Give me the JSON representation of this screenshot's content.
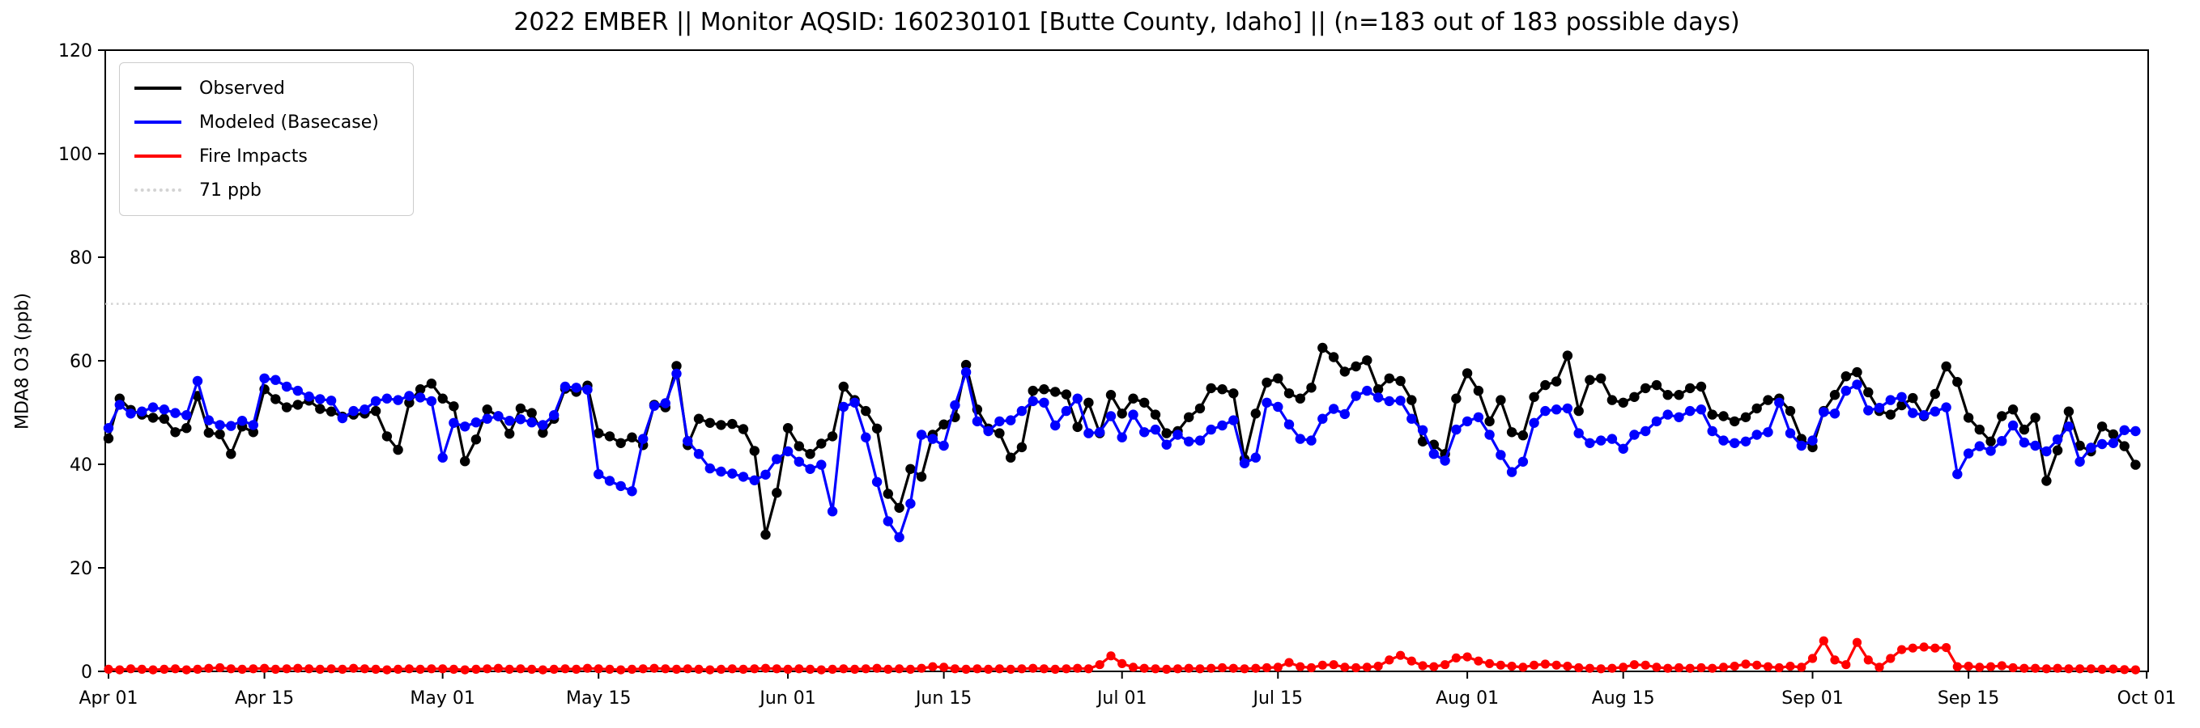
{
  "title": "2022 EMBER || Monitor AQSID: 160230101 [Butte County, Idaho] || (n=183 out of 183 possible days)",
  "legend": {
    "items": [
      {
        "label": "Observed",
        "color": "#000000",
        "style": "solid"
      },
      {
        "label": "Modeled (Basecase)",
        "color": "#0000ff",
        "style": "solid"
      },
      {
        "label": "Fire Impacts",
        "color": "#ff0000",
        "style": "solid"
      },
      {
        "label": "71 ppb",
        "color": "#d3d3d3",
        "style": "dotted"
      }
    ]
  },
  "chart_data": {
    "type": "line",
    "title": "2022 EMBER || Monitor AQSID: 160230101 [Butte County, Idaho] || (n=183 out of 183 possible days)",
    "ylabel": "MDA8 O3 (ppb)",
    "xlabel": "",
    "ylim": [
      0,
      120
    ],
    "grid": false,
    "legend_position": "upper left",
    "n_days": 183,
    "threshold": {
      "label": "71 ppb",
      "value": 71,
      "color": "#d3d3d3"
    },
    "y_axis": {
      "label": "MDA8 O3 (ppb)",
      "ticks": [
        0,
        20,
        40,
        60,
        80,
        100,
        120
      ]
    },
    "x_axis": {
      "ticks": [
        {
          "label": "Apr 01",
          "day": 0
        },
        {
          "label": "Apr 15",
          "day": 14
        },
        {
          "label": "May 01",
          "day": 30
        },
        {
          "label": "May 15",
          "day": 44
        },
        {
          "label": "Jun 01",
          "day": 61
        },
        {
          "label": "Jun 15",
          "day": 75
        },
        {
          "label": "Jul 01",
          "day": 91
        },
        {
          "label": "Jul 15",
          "day": 105
        },
        {
          "label": "Aug 01",
          "day": 122
        },
        {
          "label": "Aug 15",
          "day": 136
        },
        {
          "label": "Sep 01",
          "day": 153
        },
        {
          "label": "Sep 15",
          "day": 167
        },
        {
          "label": "Oct 01",
          "day": 183
        }
      ]
    },
    "series": [
      {
        "name": "Observed",
        "color": "#000000",
        "marker": "circle",
        "values": [
          45.0,
          52.7,
          50.5,
          49.6,
          49.0,
          48.8,
          46.2,
          47.0,
          53.2,
          46.1,
          45.8,
          42.0,
          47.3,
          46.2,
          54.5,
          52.6,
          51.0,
          51.5,
          52.3,
          50.7,
          50.2,
          49.2,
          49.6,
          49.8,
          50.3,
          45.4,
          42.8,
          51.9,
          54.5,
          55.6,
          52.7,
          51.2,
          40.6,
          44.8,
          50.6,
          49.3,
          45.9,
          50.8,
          49.9,
          46.1,
          48.8,
          54.6,
          54.0,
          55.2,
          46.0,
          45.4,
          44.1,
          45.2,
          43.7,
          51.5,
          51.0,
          59.0,
          43.7,
          48.8,
          48.0,
          47.6,
          47.8,
          46.8,
          42.6,
          26.4,
          34.5,
          47.0,
          43.5,
          42.0,
          44.0,
          45.4,
          55.0,
          52.4,
          50.3,
          46.9,
          34.3,
          31.6,
          39.1,
          37.6,
          45.7,
          47.7,
          49.1,
          59.2,
          50.6,
          46.9,
          46.0,
          41.3,
          43.3,
          54.2,
          54.5,
          54.0,
          53.5,
          47.2,
          51.9,
          46.0,
          53.4,
          49.8,
          52.7,
          51.9,
          49.6,
          46.0,
          46.4,
          49.1,
          50.8,
          54.7,
          54.5,
          53.7,
          41.0,
          49.8,
          55.8,
          56.6,
          53.7,
          52.7,
          54.8,
          62.5,
          60.7,
          57.9,
          58.9,
          60.1,
          54.5,
          56.6,
          56.1,
          52.4,
          44.4,
          43.8,
          42.0,
          52.7,
          57.6,
          54.2,
          48.3,
          52.4,
          46.2,
          45.6,
          53.0,
          55.3,
          56.0,
          61.0,
          50.3,
          56.3,
          56.6,
          52.4,
          51.9,
          53.0,
          54.7,
          55.3,
          53.4,
          53.4,
          54.7,
          55.0,
          49.6,
          49.3,
          48.3,
          49.1,
          50.8,
          52.4,
          52.7,
          50.3,
          44.9,
          43.3,
          50.3,
          53.4,
          57.0,
          57.8,
          53.9,
          50.3,
          49.6,
          51.4,
          52.8,
          49.3,
          53.6,
          58.9,
          55.9,
          49.0,
          46.7,
          44.4,
          49.3,
          50.6,
          46.7,
          49.0,
          36.8,
          42.7,
          50.2,
          43.6,
          42.5,
          47.3,
          45.8,
          43.5,
          39.9
        ]
      },
      {
        "name": "Modeled (Basecase)",
        "color": "#0000ff",
        "marker": "circle",
        "values": [
          47.0,
          51.5,
          49.8,
          50.2,
          51.0,
          50.6,
          49.9,
          49.5,
          56.1,
          48.5,
          47.6,
          47.4,
          48.4,
          47.6,
          56.6,
          56.3,
          55.0,
          54.2,
          53.1,
          52.6,
          52.3,
          48.9,
          50.3,
          50.6,
          52.2,
          52.7,
          52.4,
          53.2,
          52.9,
          52.2,
          41.3,
          48.0,
          47.3,
          48.1,
          48.8,
          49.3,
          48.4,
          48.7,
          48.1,
          47.6,
          49.5,
          55.0,
          54.8,
          54.4,
          38.1,
          36.8,
          35.8,
          34.8,
          44.9,
          51.3,
          51.8,
          57.5,
          44.5,
          42.0,
          39.2,
          38.6,
          38.2,
          37.6,
          36.9,
          38.0,
          41.0,
          42.5,
          40.5,
          39.1,
          39.9,
          30.9,
          51.1,
          51.9,
          45.2,
          36.6,
          29.0,
          25.9,
          32.4,
          45.7,
          44.9,
          43.6,
          51.4,
          57.8,
          48.3,
          46.4,
          48.3,
          48.5,
          50.3,
          52.2,
          51.9,
          47.5,
          50.3,
          52.7,
          46.0,
          46.2,
          49.3,
          45.2,
          49.6,
          46.2,
          46.7,
          43.8,
          45.7,
          44.4,
          44.6,
          46.7,
          47.5,
          48.5,
          40.2,
          41.3,
          51.9,
          51.1,
          47.7,
          44.9,
          44.6,
          48.8,
          50.7,
          49.7,
          53.2,
          54.2,
          52.9,
          52.2,
          52.3,
          48.8,
          46.6,
          42.0,
          40.7,
          46.7,
          48.3,
          49.1,
          45.7,
          41.8,
          38.5,
          40.5,
          48.0,
          50.3,
          50.6,
          50.8,
          46.0,
          44.1,
          44.6,
          44.9,
          43.0,
          45.7,
          46.4,
          48.3,
          49.6,
          49.1,
          50.3,
          50.6,
          46.4,
          44.6,
          44.1,
          44.4,
          45.7,
          46.2,
          51.9,
          46.0,
          43.6,
          44.6,
          50.1,
          49.8,
          54.2,
          55.4,
          50.4,
          50.9,
          52.4,
          53.0,
          49.9,
          49.5,
          50.2,
          51.0,
          38.1,
          42.1,
          43.5,
          42.6,
          44.5,
          47.5,
          44.2,
          43.6,
          42.5,
          44.8,
          47.3,
          40.5,
          43.2,
          43.9,
          44.1,
          46.6,
          46.4
        ]
      },
      {
        "name": "Fire Impacts",
        "color": "#ff0000",
        "marker": "circle",
        "values": [
          0.4,
          0.3,
          0.5,
          0.4,
          0.3,
          0.4,
          0.5,
          0.3,
          0.4,
          0.6,
          0.7,
          0.5,
          0.4,
          0.5,
          0.6,
          0.4,
          0.5,
          0.6,
          0.5,
          0.4,
          0.5,
          0.4,
          0.6,
          0.5,
          0.4,
          0.3,
          0.4,
          0.5,
          0.4,
          0.5,
          0.5,
          0.4,
          0.3,
          0.4,
          0.5,
          0.6,
          0.4,
          0.5,
          0.4,
          0.3,
          0.4,
          0.5,
          0.4,
          0.6,
          0.5,
          0.4,
          0.3,
          0.4,
          0.5,
          0.6,
          0.5,
          0.4,
          0.5,
          0.4,
          0.3,
          0.4,
          0.5,
          0.4,
          0.5,
          0.6,
          0.5,
          0.4,
          0.5,
          0.4,
          0.3,
          0.4,
          0.5,
          0.4,
          0.5,
          0.6,
          0.4,
          0.5,
          0.4,
          0.6,
          0.9,
          0.8,
          0.5,
          0.4,
          0.5,
          0.4,
          0.5,
          0.4,
          0.5,
          0.6,
          0.5,
          0.4,
          0.5,
          0.6,
          0.5,
          1.3,
          3.0,
          1.5,
          0.8,
          0.6,
          0.5,
          0.4,
          0.5,
          0.6,
          0.5,
          0.6,
          0.7,
          0.6,
          0.5,
          0.6,
          0.7,
          0.8,
          1.7,
          0.9,
          0.7,
          1.2,
          1.3,
          0.8,
          0.7,
          0.8,
          1.0,
          2.2,
          3.1,
          2.0,
          1.1,
          0.9,
          1.3,
          2.6,
          2.8,
          2.0,
          1.5,
          1.2,
          1.0,
          0.8,
          1.2,
          1.4,
          1.2,
          1.0,
          0.7,
          0.6,
          0.5,
          0.6,
          0.8,
          1.3,
          1.2,
          0.8,
          0.6,
          0.7,
          0.6,
          0.7,
          0.6,
          0.8,
          1.0,
          1.4,
          1.2,
          0.9,
          0.7,
          1.0,
          0.8,
          2.5,
          5.9,
          2.2,
          1.3,
          5.6,
          2.2,
          0.8,
          2.5,
          4.2,
          4.5,
          4.7,
          4.5,
          4.6,
          0.9,
          1.0,
          0.8,
          0.9,
          1.1,
          0.7,
          0.6,
          0.6,
          0.5,
          0.6,
          0.5,
          0.5,
          0.5,
          0.4,
          0.45,
          0.35,
          0.3
        ]
      }
    ]
  }
}
